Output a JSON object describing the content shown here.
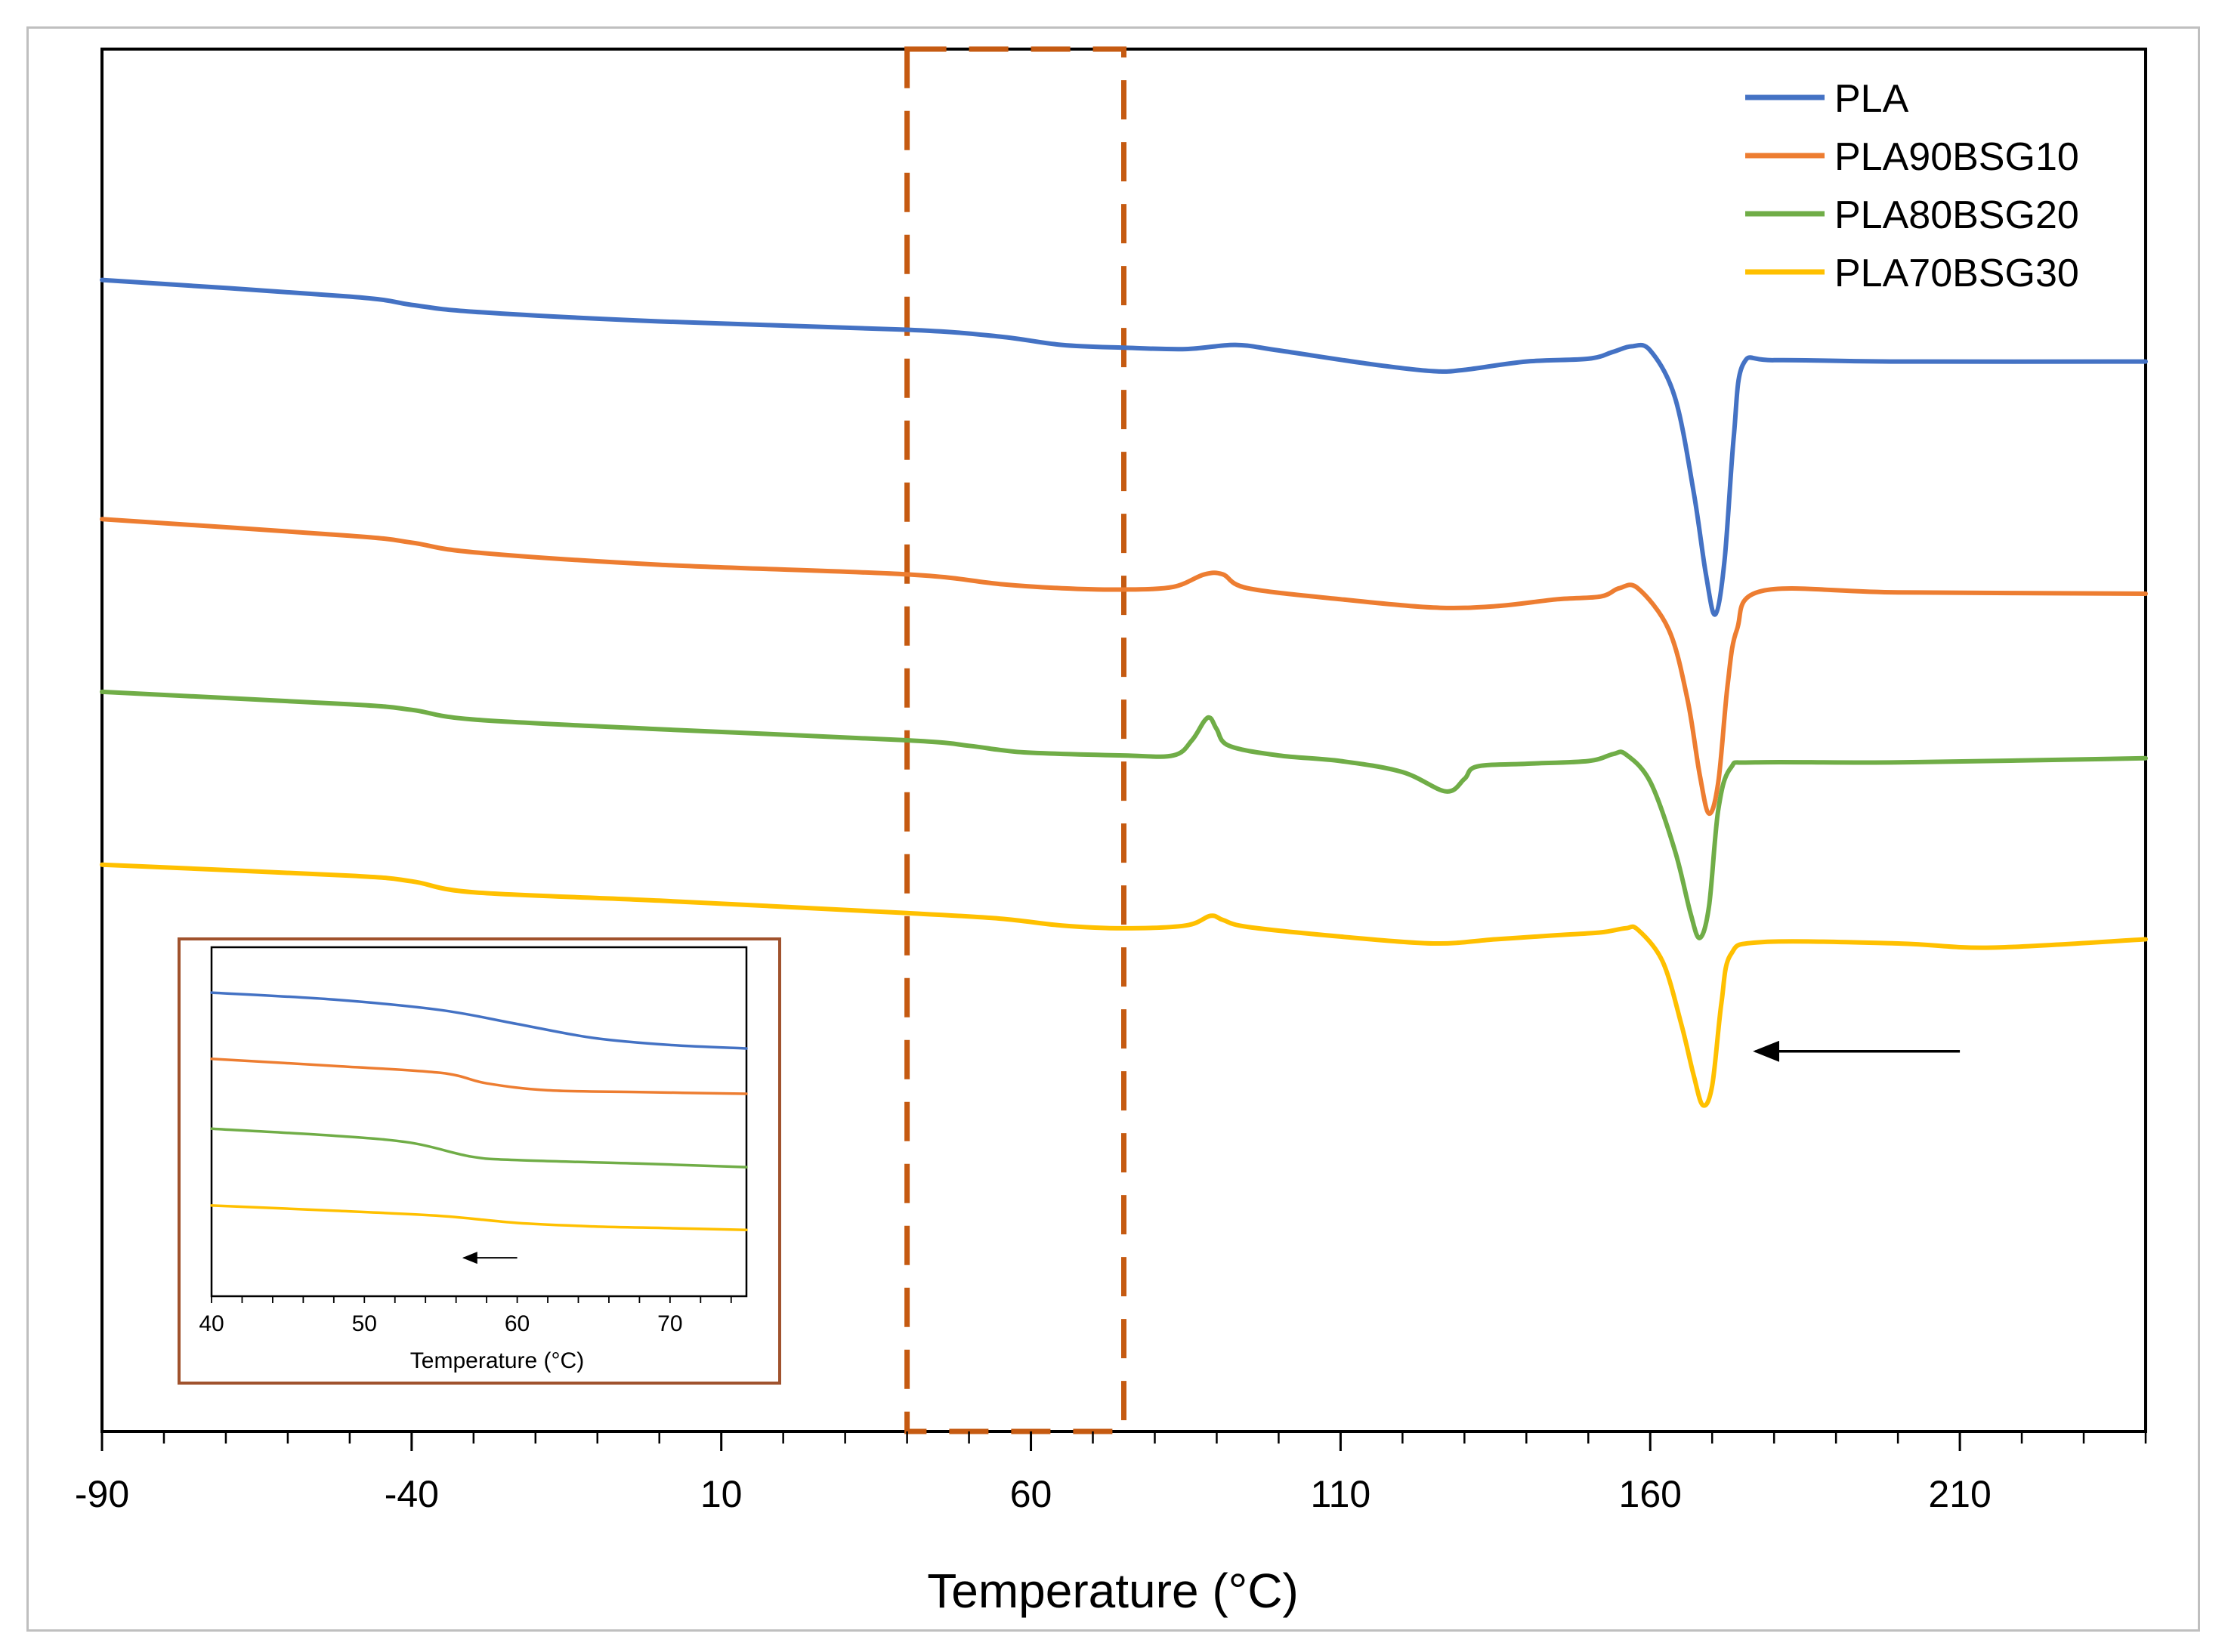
{
  "chart_data": {
    "type": "line",
    "title": "",
    "xlabel": "Temperature (°C)",
    "ylabel": "",
    "xlim": [
      -90,
      240
    ],
    "ylim": [
      0,
      100
    ],
    "xticks": [
      -90,
      -40,
      10,
      60,
      110,
      160,
      210
    ],
    "x_minor_step": 10,
    "grid": false,
    "legend_position": "top-right",
    "highlight_region": {
      "x_start": 40,
      "x_end": 75,
      "color": "#C55A11"
    },
    "series": [
      {
        "name": "PLA",
        "color": "#4472C4",
        "points": [
          [
            -90,
            83.3
          ],
          [
            -50,
            82.1
          ],
          [
            -40,
            81.5
          ],
          [
            -30,
            81.0
          ],
          [
            0,
            80.3
          ],
          [
            40,
            79.7
          ],
          [
            55,
            79.2
          ],
          [
            65,
            78.6
          ],
          [
            75,
            78.4
          ],
          [
            85,
            78.3
          ],
          [
            93,
            78.6
          ],
          [
            100,
            78.2
          ],
          [
            115,
            77.2
          ],
          [
            125,
            76.7
          ],
          [
            130,
            76.8
          ],
          [
            140,
            77.4
          ],
          [
            150,
            77.6
          ],
          [
            154,
            78.1
          ],
          [
            157,
            78.5
          ],
          [
            160,
            78.2
          ],
          [
            164,
            74.8
          ],
          [
            167,
            68.0
          ],
          [
            169,
            62.0
          ],
          [
            170.5,
            59.1
          ],
          [
            172,
            63.0
          ],
          [
            173.5,
            72.0
          ],
          [
            175,
            77.2
          ],
          [
            180,
            77.5
          ],
          [
            200,
            77.4
          ],
          [
            240,
            77.4
          ]
        ]
      },
      {
        "name": "PLA90BSG10",
        "color": "#ED7D31",
        "points": [
          [
            -90,
            66.0
          ],
          [
            -50,
            64.8
          ],
          [
            -40,
            64.3
          ],
          [
            -30,
            63.6
          ],
          [
            0,
            62.7
          ],
          [
            40,
            62.0
          ],
          [
            55,
            61.3
          ],
          [
            65,
            61.0
          ],
          [
            75,
            60.9
          ],
          [
            83,
            61.1
          ],
          [
            88,
            62.0
          ],
          [
            91,
            62.0
          ],
          [
            95,
            61.0
          ],
          [
            110,
            60.2
          ],
          [
            125,
            59.6
          ],
          [
            135,
            59.7
          ],
          [
            145,
            60.2
          ],
          [
            152,
            60.4
          ],
          [
            155,
            61.0
          ],
          [
            158,
            61.0
          ],
          [
            163,
            58.0
          ],
          [
            166,
            53.0
          ],
          [
            168,
            47.5
          ],
          [
            169.5,
            44.7
          ],
          [
            171,
            47.0
          ],
          [
            172.5,
            54.0
          ],
          [
            174,
            58.0
          ],
          [
            178,
            60.8
          ],
          [
            200,
            60.7
          ],
          [
            240,
            60.6
          ]
        ]
      },
      {
        "name": "PLA80BSG20",
        "color": "#70AD47",
        "points": [
          [
            -90,
            53.5
          ],
          [
            -50,
            52.6
          ],
          [
            -40,
            52.2
          ],
          [
            -30,
            51.5
          ],
          [
            0,
            50.8
          ],
          [
            40,
            50.0
          ],
          [
            50,
            49.6
          ],
          [
            55,
            49.3
          ],
          [
            60,
            49.1
          ],
          [
            75,
            48.9
          ],
          [
            83,
            48.9
          ],
          [
            86,
            50.0
          ],
          [
            88,
            51.4
          ],
          [
            89,
            51.6
          ],
          [
            90,
            50.8
          ],
          [
            92,
            49.6
          ],
          [
            100,
            48.9
          ],
          [
            110,
            48.5
          ],
          [
            120,
            47.7
          ],
          [
            127,
            46.3
          ],
          [
            130,
            47.2
          ],
          [
            132,
            48.1
          ],
          [
            140,
            48.3
          ],
          [
            150,
            48.5
          ],
          [
            154,
            49.0
          ],
          [
            156,
            49.0
          ],
          [
            160,
            47.0
          ],
          [
            164,
            42.0
          ],
          [
            166.5,
            37.5
          ],
          [
            168,
            35.7
          ],
          [
            169.5,
            38.0
          ],
          [
            171,
            45.0
          ],
          [
            173,
            48.0
          ],
          [
            177,
            48.4
          ],
          [
            200,
            48.4
          ],
          [
            240,
            48.7
          ]
        ]
      },
      {
        "name": "PLA70BSG30",
        "color": "#FFC000",
        "points": [
          [
            -90,
            41.0
          ],
          [
            -50,
            40.2
          ],
          [
            -40,
            39.8
          ],
          [
            -30,
            39.0
          ],
          [
            0,
            38.4
          ],
          [
            40,
            37.5
          ],
          [
            55,
            37.1
          ],
          [
            65,
            36.6
          ],
          [
            75,
            36.4
          ],
          [
            85,
            36.6
          ],
          [
            89,
            37.3
          ],
          [
            91,
            37.0
          ],
          [
            95,
            36.5
          ],
          [
            110,
            35.8
          ],
          [
            125,
            35.3
          ],
          [
            135,
            35.6
          ],
          [
            145,
            35.9
          ],
          [
            152,
            36.1
          ],
          [
            156,
            36.4
          ],
          [
            158,
            36.3
          ],
          [
            162,
            34.0
          ],
          [
            165,
            29.5
          ],
          [
            167,
            25.8
          ],
          [
            168.5,
            23.6
          ],
          [
            170,
            25.0
          ],
          [
            171.5,
            31.0
          ],
          [
            173,
            34.5
          ],
          [
            178,
            35.4
          ],
          [
            200,
            35.3
          ],
          [
            215,
            35.0
          ],
          [
            240,
            35.6
          ]
        ]
      }
    ],
    "annotations": [
      {
        "type": "arrow",
        "direction": "left",
        "x_from": 210,
        "x_to": 177,
        "y": 27.5
      }
    ],
    "inset": {
      "xlabel": "Temperature (°C)",
      "xlim": [
        40,
        75
      ],
      "ylim": [
        0,
        100
      ],
      "xticks": [
        40,
        50,
        60,
        70
      ],
      "x_minor_step": 2,
      "series": [
        {
          "name": "PLA",
          "color": "#4472C4",
          "points": [
            [
              40,
              87
            ],
            [
              48,
              85
            ],
            [
              55,
              82
            ],
            [
              60,
              78
            ],
            [
              65,
              74
            ],
            [
              70,
              72
            ],
            [
              75,
              71
            ]
          ]
        },
        {
          "name": "PLA90BSG10",
          "color": "#ED7D31",
          "points": [
            [
              40,
              68
            ],
            [
              48,
              66
            ],
            [
              55,
              64
            ],
            [
              58,
              61
            ],
            [
              62,
              59
            ],
            [
              68,
              58.5
            ],
            [
              75,
              58
            ]
          ]
        },
        {
          "name": "PLA80BSG20",
          "color": "#70AD47",
          "points": [
            [
              40,
              48
            ],
            [
              48,
              46
            ],
            [
              53,
              44
            ],
            [
              57,
              40
            ],
            [
              60,
              39
            ],
            [
              68,
              38
            ],
            [
              75,
              37
            ]
          ]
        },
        {
          "name": "PLA70BSG30",
          "color": "#FFC000",
          "points": [
            [
              40,
              26
            ],
            [
              48,
              24.5
            ],
            [
              55,
              23
            ],
            [
              60,
              21
            ],
            [
              65,
              20
            ],
            [
              70,
              19.5
            ],
            [
              75,
              19
            ]
          ]
        }
      ],
      "annotations": [
        {
          "type": "arrow",
          "direction": "left",
          "x_from": 60,
          "x_to": 56.5,
          "y": 11
        }
      ]
    }
  }
}
